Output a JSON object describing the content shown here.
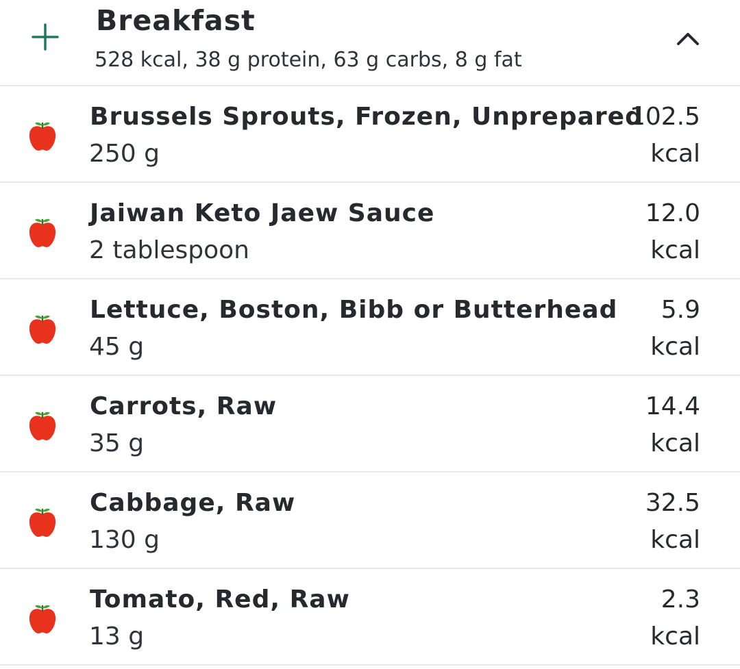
{
  "meal": {
    "title": "Breakfast",
    "summary": "528 kcal, 38 g protein, 63 g carbs, 8 g fat",
    "add_icon": "plus-icon",
    "collapse_icon": "chevron-up-icon"
  },
  "colors": {
    "accent": "#1e7a5c",
    "apple_red": "#e8321e",
    "apple_leaf": "#4aa43a",
    "divider": "#e6e7ea"
  },
  "items": [
    {
      "name": "Brussels Sprouts, Frozen, Unprepared",
      "amount": "250 g",
      "kcal": "102.5",
      "unit": "kcal",
      "icon": "apple-icon"
    },
    {
      "name": "Jaiwan Keto Jaew Sauce",
      "amount": "2 tablespoon",
      "kcal": "12.0",
      "unit": "kcal",
      "icon": "apple-icon"
    },
    {
      "name": "Lettuce, Boston, Bibb or Butterhead",
      "amount": "45 g",
      "kcal": "5.9",
      "unit": "kcal",
      "icon": "apple-icon"
    },
    {
      "name": "Carrots, Raw",
      "amount": "35 g",
      "kcal": "14.4",
      "unit": "kcal",
      "icon": "apple-icon"
    },
    {
      "name": "Cabbage, Raw",
      "amount": "130 g",
      "kcal": "32.5",
      "unit": "kcal",
      "icon": "apple-icon"
    },
    {
      "name": "Tomato, Red, Raw",
      "amount": "13 g",
      "kcal": "2.3",
      "unit": "kcal",
      "icon": "apple-icon"
    }
  ]
}
